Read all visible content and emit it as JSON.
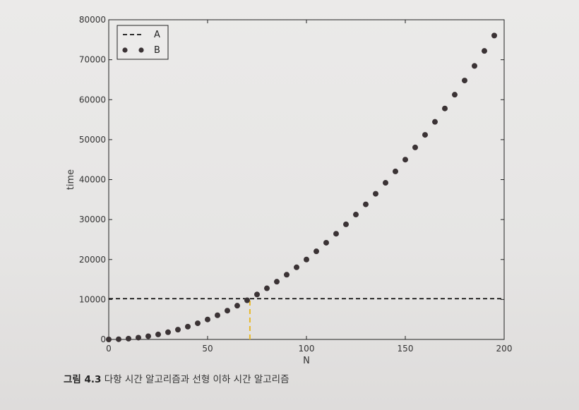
{
  "chart_data": {
    "type": "scatter",
    "xlabel": "N",
    "ylabel": "time",
    "xlim": [
      0,
      200
    ],
    "ylim": [
      0,
      80000
    ],
    "x_ticks": [
      0,
      50,
      100,
      150,
      200
    ],
    "y_ticks": [
      0,
      10000,
      20000,
      30000,
      40000,
      50000,
      60000,
      70000,
      80000
    ],
    "grid": false,
    "legend_position": "top-left",
    "series": [
      {
        "name": "A",
        "style": "dashed-line",
        "color": "#111111",
        "x": [
          0,
          200
        ],
        "y": [
          10200,
          10200
        ]
      },
      {
        "name": "B",
        "style": "dots",
        "color": "#3b3335",
        "x": [
          0,
          5,
          10,
          15,
          20,
          25,
          30,
          35,
          40,
          45,
          50,
          55,
          60,
          65,
          70,
          75,
          80,
          85,
          90,
          95,
          100,
          105,
          110,
          115,
          120,
          125,
          130,
          135,
          140,
          145,
          150,
          155,
          160,
          165,
          170,
          175,
          180,
          185,
          190,
          195
        ],
        "y": [
          0,
          50,
          200,
          450,
          800,
          1250,
          1800,
          2450,
          3200,
          4050,
          5000,
          6050,
          7200,
          8450,
          9800,
          11250,
          12800,
          14450,
          16200,
          18050,
          20000,
          22050,
          24200,
          26450,
          28800,
          31250,
          33800,
          36450,
          39200,
          42050,
          45000,
          48050,
          51200,
          54450,
          57800,
          61250,
          64800,
          68450,
          72200,
          76050
        ]
      }
    ],
    "annotations": [
      {
        "type": "vertical-dashed-line",
        "color": "#e8b82a",
        "x": 71.4,
        "y_from": 0,
        "y_to": 10200
      }
    ]
  },
  "caption": {
    "prefix": "그림 4.3",
    "text": "다항 시간 알고리즘과 선형 이하 시간 알고리즘"
  }
}
